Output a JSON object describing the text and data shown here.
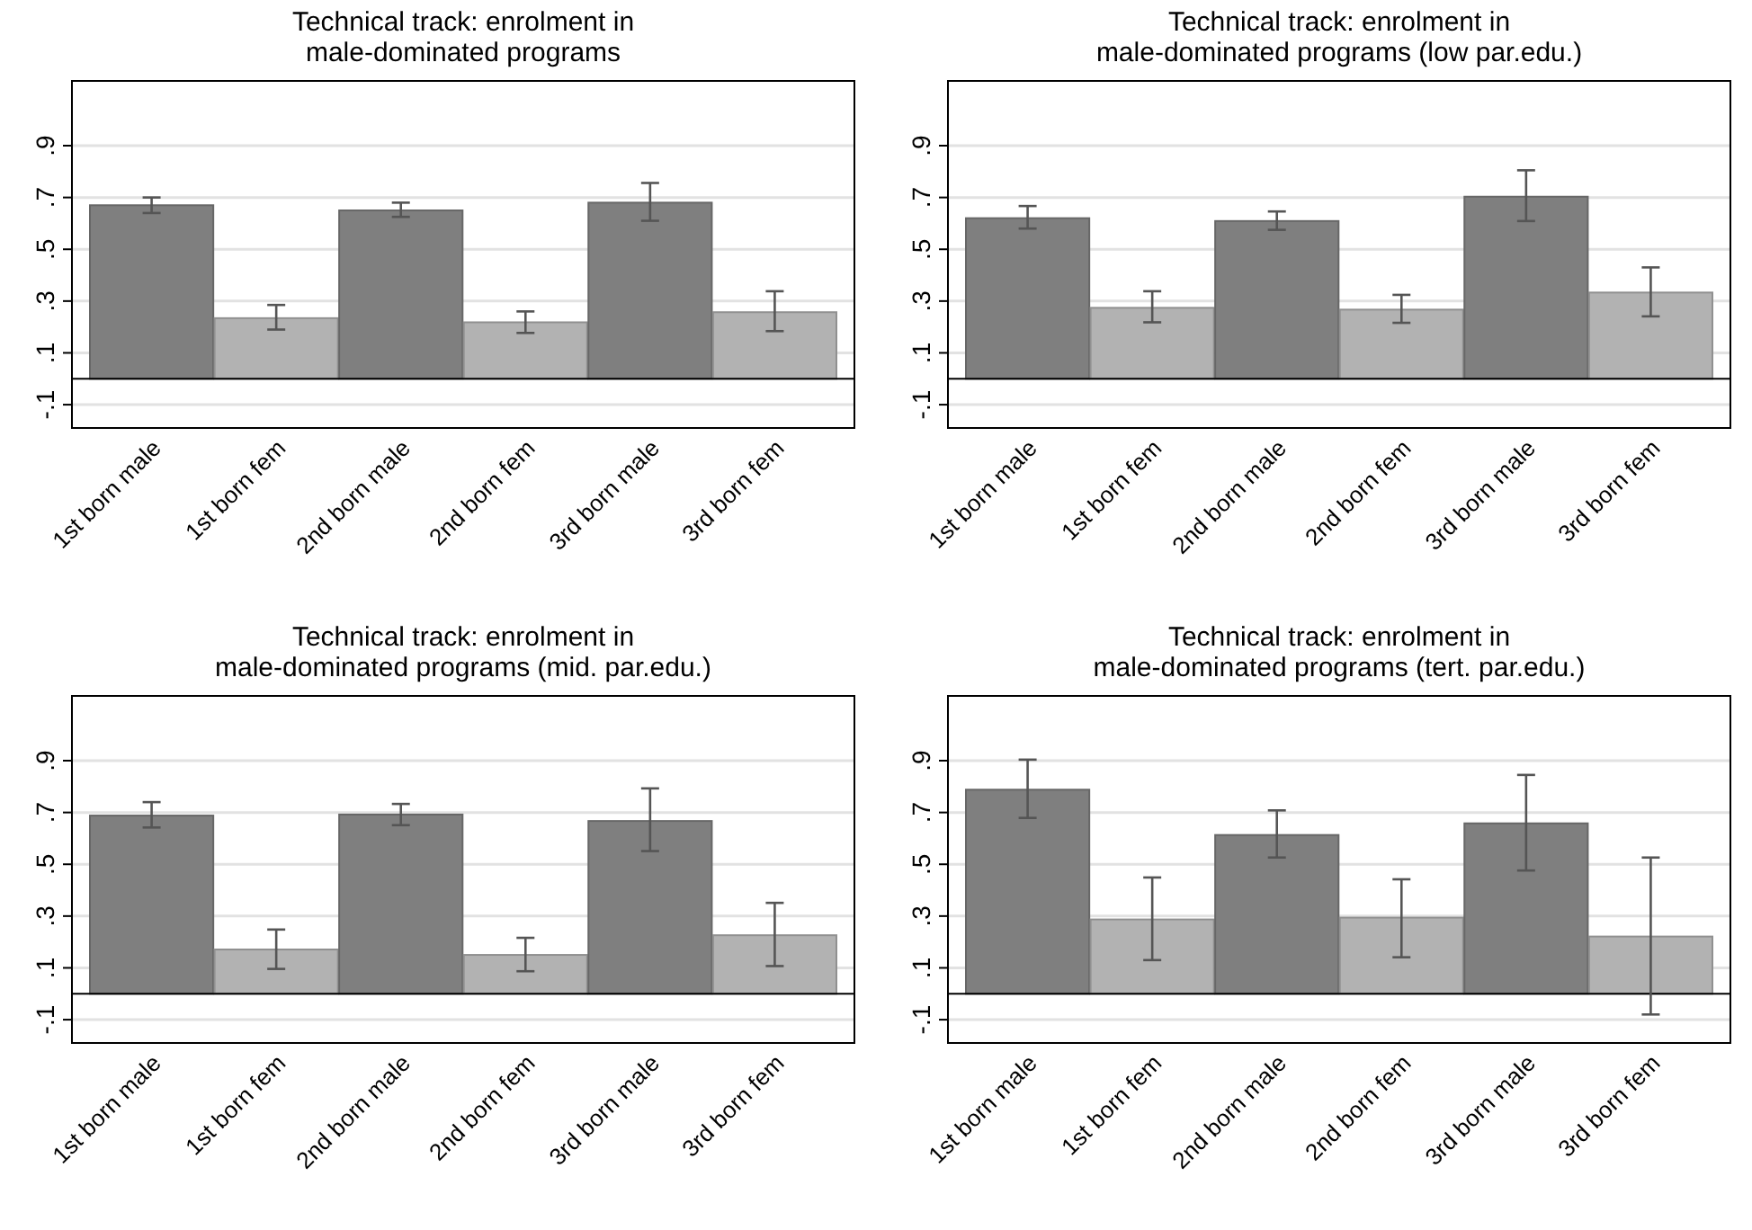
{
  "chart_data": [
    {
      "type": "bar",
      "title": "Technical track: enrolment in\nmale-dominated programs",
      "categories": [
        "1st born male",
        "1st born fem",
        "2nd born male",
        "2nd born fem",
        "3rd born male",
        "3rd born fem"
      ],
      "values": [
        0.67,
        0.234,
        0.65,
        0.218,
        0.68,
        0.257
      ],
      "colors": [
        "#7f7f7f",
        "#b2b2b2",
        "#7f7f7f",
        "#b2b2b2",
        "#7f7f7f",
        "#b2b2b2"
      ],
      "errors": [
        [
          0.64,
          0.7
        ],
        [
          0.19,
          0.285
        ],
        [
          0.625,
          0.68
        ],
        [
          0.177,
          0.26
        ],
        [
          0.61,
          0.756
        ],
        [
          0.184,
          0.338
        ]
      ],
      "ylim": [
        -0.19,
        1.15
      ],
      "yticks": [
        {
          "value": -0.1,
          "label": "-.1"
        },
        {
          "value": 0.1,
          "label": ".1"
        },
        {
          "value": 0.3,
          "label": ".3"
        },
        {
          "value": 0.5,
          "label": ".5"
        },
        {
          "value": 0.7,
          "label": ".7"
        },
        {
          "value": 0.9,
          "label": ".9"
        }
      ],
      "grid": "y"
    },
    {
      "type": "bar",
      "title": "Technical track: enrolment in\nmale-dominated programs (low par.edu.)",
      "categories": [
        "1st born male",
        "1st born fem",
        "2nd born male",
        "2nd born fem",
        "3rd born male",
        "3rd born fem"
      ],
      "values": [
        0.62,
        0.274,
        0.609,
        0.267,
        0.703,
        0.333
      ],
      "colors": [
        "#7f7f7f",
        "#b2b2b2",
        "#7f7f7f",
        "#b2b2b2",
        "#7f7f7f",
        "#b2b2b2"
      ],
      "errors": [
        [
          0.58,
          0.667
        ],
        [
          0.218,
          0.338
        ],
        [
          0.575,
          0.646
        ],
        [
          0.216,
          0.324
        ],
        [
          0.609,
          0.805
        ],
        [
          0.241,
          0.43
        ]
      ],
      "ylim": [
        -0.19,
        1.15
      ],
      "yticks": [
        {
          "value": -0.1,
          "label": "-.1"
        },
        {
          "value": 0.1,
          "label": ".1"
        },
        {
          "value": 0.3,
          "label": ".3"
        },
        {
          "value": 0.5,
          "label": ".5"
        },
        {
          "value": 0.7,
          "label": ".7"
        },
        {
          "value": 0.9,
          "label": ".9"
        }
      ],
      "grid": "y"
    },
    {
      "type": "bar",
      "title": "Technical track: enrolment in\nmale-dominated programs (mid. par.edu.)",
      "categories": [
        "1st born male",
        "1st born fem",
        "2nd born male",
        "2nd born fem",
        "3rd born male",
        "3rd born fem"
      ],
      "values": [
        0.688,
        0.171,
        0.692,
        0.15,
        0.667,
        0.226
      ],
      "colors": [
        "#7f7f7f",
        "#b2b2b2",
        "#7f7f7f",
        "#b2b2b2",
        "#7f7f7f",
        "#b2b2b2"
      ],
      "errors": [
        [
          0.642,
          0.74
        ],
        [
          0.096,
          0.248
        ],
        [
          0.651,
          0.733
        ],
        [
          0.087,
          0.216
        ],
        [
          0.551,
          0.793
        ],
        [
          0.107,
          0.351
        ]
      ],
      "ylim": [
        -0.19,
        1.15
      ],
      "yticks": [
        {
          "value": -0.1,
          "label": "-.1"
        },
        {
          "value": 0.1,
          "label": ".1"
        },
        {
          "value": 0.3,
          "label": ".3"
        },
        {
          "value": 0.5,
          "label": ".5"
        },
        {
          "value": 0.7,
          "label": ".7"
        },
        {
          "value": 0.9,
          "label": ".9"
        }
      ],
      "grid": "y"
    },
    {
      "type": "bar",
      "title": "Technical track: enrolment in\nmale-dominated programs (tert. par.edu.)",
      "categories": [
        "1st born male",
        "1st born fem",
        "2nd born male",
        "2nd born fem",
        "3rd born male",
        "3rd born fem"
      ],
      "values": [
        0.788,
        0.287,
        0.613,
        0.294,
        0.658,
        0.221
      ],
      "colors": [
        "#7f7f7f",
        "#b2b2b2",
        "#7f7f7f",
        "#b2b2b2",
        "#7f7f7f",
        "#b2b2b2"
      ],
      "errors": [
        [
          0.679,
          0.904
        ],
        [
          0.13,
          0.449
        ],
        [
          0.526,
          0.708
        ],
        [
          0.141,
          0.442
        ],
        [
          0.476,
          0.845
        ],
        [
          -0.08,
          0.526
        ]
      ],
      "ylim": [
        -0.19,
        1.15
      ],
      "yticks": [
        {
          "value": -0.1,
          "label": "-.1"
        },
        {
          "value": 0.1,
          "label": ".1"
        },
        {
          "value": 0.3,
          "label": ".3"
        },
        {
          "value": 0.5,
          "label": ".5"
        },
        {
          "value": 0.7,
          "label": ".7"
        },
        {
          "value": 0.9,
          "label": ".9"
        }
      ],
      "grid": "y"
    }
  ]
}
